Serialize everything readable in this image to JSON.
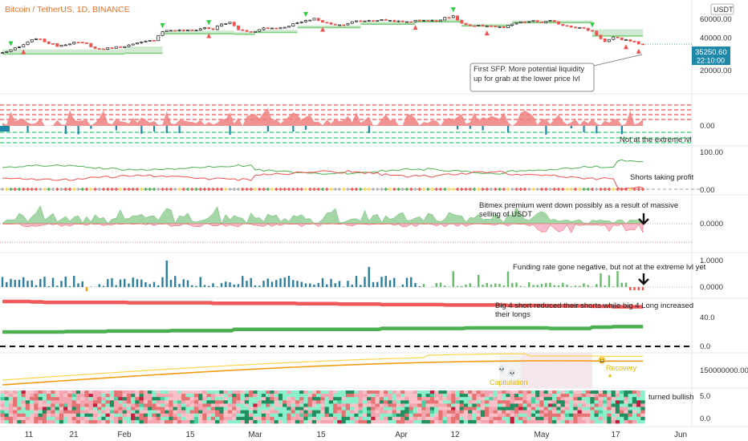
{
  "header": {
    "title": "Bitcoin / TetherUS, 1D, BINANCE",
    "currency": "USDT",
    "last_price": "35250.60",
    "countdown": "22:10:00"
  },
  "colors": {
    "up": "#26a69a",
    "down": "#ef5350",
    "accent": "#e8732c",
    "band": "#c8e6c9",
    "tri_up": "#2ecc40",
    "tri_down": "#ef5350",
    "last_price_bg": "#1e88a8",
    "cmp_red": "#f05a5a",
    "cmp_green": "#4caf50",
    "heat_red": "#f4a5b0",
    "heat_teal": "#8af0cc"
  },
  "chart_data": {
    "type": "line",
    "x_axis": {
      "tick_labels": [
        "11",
        "21",
        "Feb",
        "15",
        "Mar",
        "15",
        "Apr",
        "12",
        "May",
        "17",
        "Jun"
      ],
      "start": "2021-01-01",
      "end": "2021-06-02"
    },
    "price_pane": {
      "scale": "log",
      "y_ticks": [
        "60000.00",
        "40000.00",
        "20000.00"
      ],
      "closes": [
        [
          0,
          29300
        ],
        [
          4,
          33000
        ],
        [
          8,
          40000
        ],
        [
          11,
          36000
        ],
        [
          13,
          34000
        ],
        [
          17,
          36500
        ],
        [
          20,
          35500
        ],
        [
          22,
          32000
        ],
        [
          24,
          31800
        ],
        [
          27,
          33000
        ],
        [
          30,
          34300
        ],
        [
          33,
          36500
        ],
        [
          36,
          38500
        ],
        [
          38,
          46500
        ],
        [
          40,
          47500
        ],
        [
          45,
          47000
        ],
        [
          48,
          50000
        ],
        [
          50,
          48500
        ],
        [
          52,
          54000
        ],
        [
          54,
          56000
        ],
        [
          56,
          48000
        ],
        [
          58,
          46500
        ],
        [
          60,
          46000
        ],
        [
          62,
          50000
        ],
        [
          66,
          49500
        ],
        [
          70,
          55500
        ],
        [
          72,
          57500
        ],
        [
          74,
          61300
        ],
        [
          76,
          56000
        ],
        [
          80,
          53000
        ],
        [
          84,
          57500
        ],
        [
          88,
          58700
        ],
        [
          91,
          59000
        ],
        [
          95,
          56500
        ],
        [
          100,
          59000
        ],
        [
          103,
          57500
        ],
        [
          105,
          62500
        ],
        [
          107,
          63500
        ],
        [
          109,
          55000
        ],
        [
          111,
          51500
        ],
        [
          115,
          52500
        ],
        [
          119,
          50000
        ],
        [
          122,
          55500
        ],
        [
          126,
          57500
        ],
        [
          128,
          56000
        ],
        [
          130,
          57800
        ],
        [
          133,
          53000
        ],
        [
          137,
          50000
        ],
        [
          140,
          46500
        ],
        [
          141,
          43000
        ],
        [
          143,
          37000
        ],
        [
          145,
          40500
        ],
        [
          147,
          39000
        ],
        [
          149,
          38000
        ],
        [
          151,
          35500
        ],
        [
          152,
          35250
        ]
      ],
      "sfp_annotation": "First SFP.  More potential liquidity up for grab at the lower price lvl"
    },
    "panes": [
      {
        "id": "liquidation",
        "y_ticks": [
          "0.00"
        ],
        "annotation": "Not at the extreme lvl"
      },
      {
        "id": "long_short",
        "y_ticks": [
          "100.00",
          "0.00"
        ],
        "annotation": "Shorts taking profit"
      },
      {
        "id": "premium",
        "y_ticks": [
          "0.0000",
          "0.0000"
        ],
        "annotation": "Bitmex premium went down possibly as a result of massive selling of USDT"
      },
      {
        "id": "funding",
        "y_ticks": [
          "1.0000",
          "0.0000"
        ],
        "annotation": "Funding rate gone negative, but not at the extreme lvl yet"
      },
      {
        "id": "big4",
        "y_ticks": [
          "40.0",
          "0.0"
        ],
        "annotation": "Big 4 short reduced their shorts while big 4 Long increased their longs"
      },
      {
        "id": "cap",
        "y_ticks": [
          "150000000.00"
        ],
        "labels": [
          "Capitulation",
          "Recovery"
        ]
      },
      {
        "id": "heatmap",
        "y_ticks": [
          "5.0",
          "0.0"
        ],
        "annotation": "turned bullish"
      }
    ]
  }
}
